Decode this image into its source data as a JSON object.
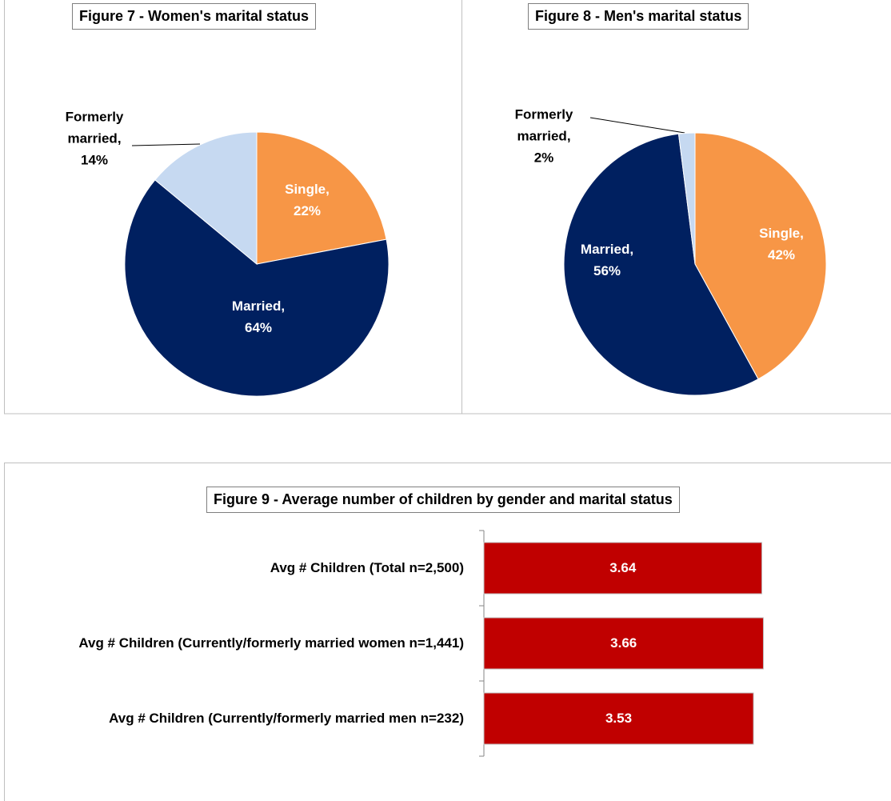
{
  "chart_data": [
    {
      "type": "pie",
      "title": "Figure 7 - Women's marital status",
      "categories": [
        "Single,",
        "Married,",
        "Formerly married,"
      ],
      "values": [
        22,
        64,
        14
      ],
      "value_labels": [
        "22%",
        "64%",
        "14%"
      ],
      "colors": [
        "#f79646",
        "#002060",
        "#c6d9f1"
      ]
    },
    {
      "type": "pie",
      "title": "Figure 8 - Men's marital status",
      "categories": [
        "Single,",
        "Married,",
        "Formerly married,"
      ],
      "values": [
        42,
        56,
        2
      ],
      "value_labels": [
        "42%",
        "56%",
        "2%"
      ],
      "colors": [
        "#f79646",
        "#002060",
        "#c6d9f1"
      ]
    },
    {
      "type": "hbar",
      "title": "Figure 9 - Average number of children by gender and marital status",
      "categories": [
        "Avg # Children (Total n=2,500)",
        "Avg # Children (Currently/formerly married women n=1,441)",
        "Avg # Children (Currently/formerly married men n=232)"
      ],
      "values": [
        3.64,
        3.66,
        3.53
      ],
      "color": "#c00000",
      "xlim": [
        0,
        4.2
      ]
    }
  ]
}
